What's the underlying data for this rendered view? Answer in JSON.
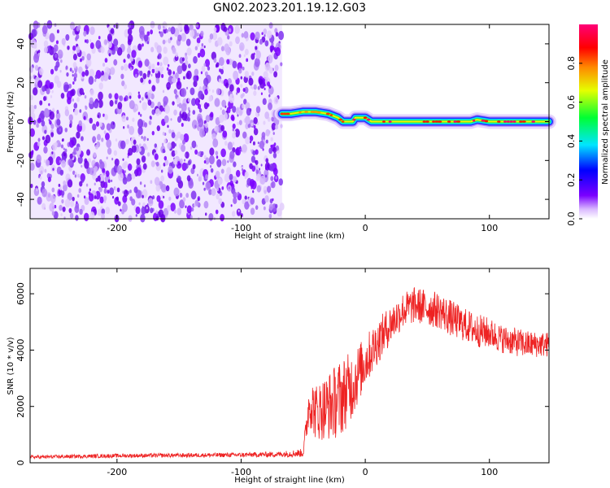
{
  "title": "GN02.2023.201.19.12.G03",
  "colors": {
    "snr_line": "#ee2222",
    "frame": "#000000"
  },
  "chart_data": [
    {
      "type": "heatmap",
      "xlabel": "Height of straight line (km)",
      "ylabel": "Frequency (Hz)",
      "xlim": [
        -270,
        148
      ],
      "ylim": [
        -50,
        50
      ],
      "x_ticks": [
        -200,
        -100,
        0,
        100
      ],
      "y_ticks": [
        -40,
        -20,
        0,
        20,
        40
      ],
      "colorbar": {
        "label": "Normalized spectral amplitude",
        "range": [
          0,
          1
        ],
        "ticks": [
          "0.0",
          "0.2",
          "0.4",
          "0.6",
          "0.8"
        ],
        "colormap": "rainbow (white-violet-blue-cyan-green-yellow-red-magenta)"
      },
      "noise_region_x": [
        -270,
        -67
      ],
      "signal_trace": [
        {
          "x": -67,
          "y": 4
        },
        {
          "x": -60,
          "y": 4
        },
        {
          "x": -50,
          "y": 5
        },
        {
          "x": -40,
          "y": 5
        },
        {
          "x": -30,
          "y": 4
        },
        {
          "x": -22,
          "y": 2
        },
        {
          "x": -18,
          "y": 0
        },
        {
          "x": -10,
          "y": 0
        },
        {
          "x": -8,
          "y": 2
        },
        {
          "x": 0,
          "y": 2
        },
        {
          "x": 5,
          "y": 0
        },
        {
          "x": 30,
          "y": 0
        },
        {
          "x": 60,
          "y": 0
        },
        {
          "x": 85,
          "y": 0
        },
        {
          "x": 90,
          "y": 1
        },
        {
          "x": 100,
          "y": 0
        },
        {
          "x": 148,
          "y": 0
        }
      ],
      "grid": false
    },
    {
      "type": "line",
      "xlabel": "Height of straight line (km)",
      "ylabel": "SNR (10 * v/v)",
      "xlim": [
        -270,
        148
      ],
      "ylim": [
        0,
        6900
      ],
      "x_ticks": [
        -200,
        -100,
        0,
        100
      ],
      "y_ticks": [
        0,
        2000,
        4000,
        6000
      ],
      "series": [
        {
          "x": [
            -270,
            -200,
            -100,
            -70,
            -50,
            -45,
            -40,
            -30,
            -20,
            -10,
            0,
            10,
            20,
            30,
            40,
            50,
            60,
            70,
            80,
            90,
            100,
            110,
            120,
            130,
            140,
            148
          ],
          "values": [
            200,
            250,
            280,
            300,
            350,
            2200,
            1800,
            2000,
            2300,
            2800,
            3600,
            4300,
            4900,
            5400,
            5600,
            5500,
            5400,
            5100,
            4900,
            4700,
            4600,
            4400,
            4300,
            4200,
            4200,
            4200
          ],
          "noise_amplitude": [
            60,
            70,
            80,
            100,
            150,
            900,
            1000,
            1200,
            1400,
            1200,
            900,
            800,
            700,
            650,
            650,
            650,
            650,
            650,
            600,
            600,
            550,
            500,
            500,
            500,
            450,
            450
          ]
        }
      ],
      "grid": false
    }
  ]
}
